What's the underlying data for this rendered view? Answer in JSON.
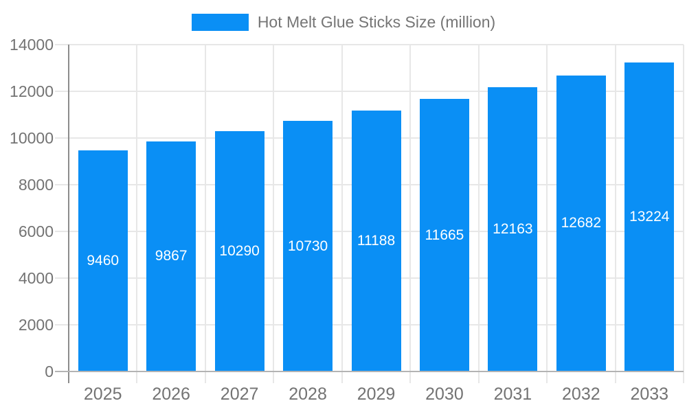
{
  "colors": {
    "bar": "#0a8ff5",
    "grid": "#e7e7e7",
    "axis_y": "#8c8c8c",
    "axis_x": "#b3b3b3",
    "tick_label": "#737373",
    "value_label": "#ffffff",
    "legend_text": "#757575",
    "background": "#ffffff"
  },
  "chart_data": {
    "type": "bar",
    "legend": "Hot Melt Glue Sticks Size (million)",
    "legend_position": "top-center",
    "categories": [
      "2025",
      "2026",
      "2027",
      "2028",
      "2029",
      "2030",
      "2031",
      "2032",
      "2033"
    ],
    "values": [
      9460,
      9867,
      10290,
      10730,
      11188,
      11665,
      12163,
      12682,
      13224
    ],
    "title": "",
    "xlabel": "",
    "ylabel": "",
    "ylim": [
      0,
      14000
    ],
    "ytick_step": 2000,
    "yticks": [
      0,
      2000,
      4000,
      6000,
      8000,
      10000,
      12000,
      14000
    ],
    "grid": true,
    "bar_value_labels": "inside-center"
  }
}
